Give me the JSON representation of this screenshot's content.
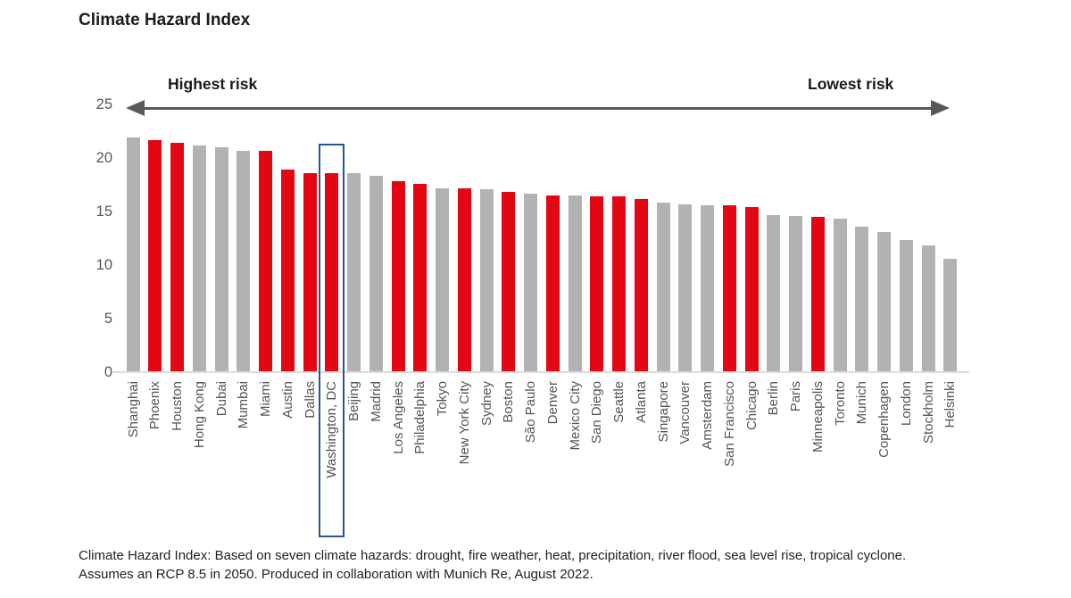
{
  "title": "Climate Hazard Index",
  "annotations": {
    "highest_risk": "Highest risk",
    "lowest_risk": "Lowest risk"
  },
  "footnote": {
    "line1": "Climate Hazard Index: Based on seven climate hazards: drought, fire weather, heat, precipitation, river flood, sea level rise, tropical cyclone.",
    "line2": "Assumes an RCP 8.5 in 2050. Produced in collaboration with Munich Re, August 2022."
  },
  "colors": {
    "us_bar_red": "#e30613",
    "intl_bar_gray": "#b2b2b2",
    "arrow_gray": "#595959",
    "highlight_box_blue": "#2a5391"
  },
  "chart_data": {
    "type": "bar",
    "title": "Climate Hazard Index",
    "xlabel": "",
    "ylabel": "",
    "ylim": [
      0,
      25
    ],
    "yticks": [
      0,
      5,
      10,
      15,
      20,
      25
    ],
    "grid": false,
    "legend": "none",
    "highlighted_city": "Washington, DC",
    "color_coding": "red bars = US cities, gray bars = non-US cities",
    "categories": [
      "Shanghai",
      "Phoenix",
      "Houston",
      "Hong Kong",
      "Dubai",
      "Mumbai",
      "Miami",
      "Austin",
      "Dallas",
      "Washington, DC",
      "Beijing",
      "Madrid",
      "Los Angeles",
      "Philadelphia",
      "Tokyo",
      "New York City",
      "Sydney",
      "Boston",
      "São Paulo",
      "Denver",
      "Mexico City",
      "San Diego",
      "Seattle",
      "Atlanta",
      "Singapore",
      "Vancouver",
      "Amsterdam",
      "San Francisco",
      "Chicago",
      "Berlin",
      "Paris",
      "Minneapolis",
      "Toronto",
      "Munich",
      "Copenhagen",
      "London",
      "Stockholm",
      "Helsinki"
    ],
    "values": [
      21.9,
      21.7,
      21.4,
      21.2,
      21.0,
      20.7,
      20.7,
      18.9,
      18.6,
      18.6,
      18.6,
      18.3,
      17.8,
      17.6,
      17.2,
      17.2,
      17.1,
      16.8,
      16.7,
      16.5,
      16.5,
      16.4,
      16.4,
      16.2,
      15.8,
      15.7,
      15.6,
      15.6,
      15.4,
      14.7,
      14.6,
      14.5,
      14.3,
      13.6,
      13.1,
      12.3,
      11.8,
      10.6
    ],
    "is_us_city": [
      false,
      true,
      true,
      false,
      false,
      false,
      true,
      true,
      true,
      true,
      false,
      false,
      true,
      true,
      false,
      true,
      false,
      true,
      false,
      true,
      false,
      true,
      true,
      true,
      false,
      false,
      false,
      true,
      true,
      false,
      false,
      true,
      false,
      false,
      false,
      false,
      false,
      false
    ]
  }
}
